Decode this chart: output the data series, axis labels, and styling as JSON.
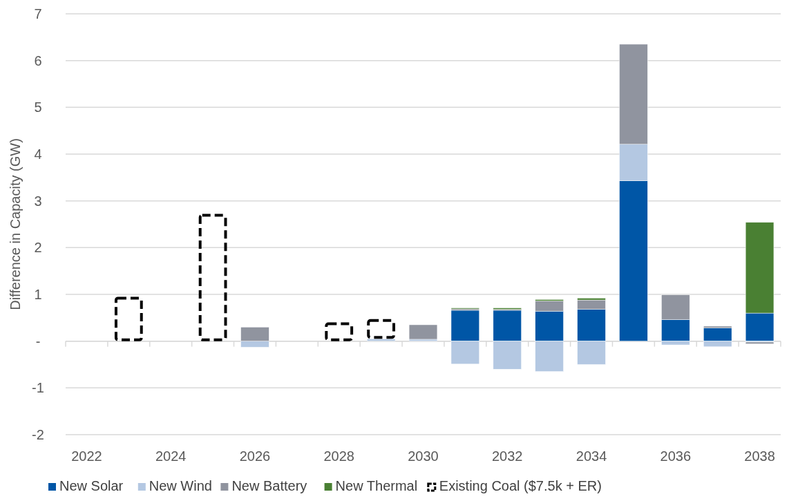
{
  "chart_data": {
    "type": "bar",
    "stacked": true,
    "ylabel": "Difference in Capacity (GW)",
    "categories": [
      "2022",
      null,
      "2024",
      null,
      "2026",
      null,
      "2028",
      null,
      "2030",
      null,
      "2032",
      null,
      "2034",
      null,
      "2036",
      null,
      "2038"
    ],
    "series": [
      {
        "name": "New Solar",
        "color": "#0056a6",
        "values": [
          0,
          0,
          0,
          0,
          0,
          0,
          0,
          0,
          0,
          0.66,
          0.66,
          0.64,
          0.68,
          3.43,
          0.46,
          0.28,
          0.6
        ]
      },
      {
        "name": "New Wind",
        "color": "#b4c8e2",
        "values": [
          0,
          0,
          0,
          0,
          -0.13,
          null,
          0,
          0.05,
          0.04,
          -0.49,
          -0.6,
          -0.65,
          -0.5,
          0.78,
          -0.08,
          -0.12,
          -0.02
        ]
      },
      {
        "name": "New Battery",
        "color": "#90949f",
        "values": [
          0,
          0,
          0,
          0,
          0.3,
          0,
          0,
          0,
          0.31,
          0.03,
          0.02,
          0.22,
          0.2,
          2.14,
          0.53,
          0.04,
          -0.04
        ]
      },
      {
        "name": "New Thermal",
        "color": "#4a8033",
        "values": [
          0,
          0,
          0,
          0,
          0,
          0,
          0,
          0,
          0,
          0.02,
          0.03,
          0.03,
          0.04,
          0,
          null,
          null,
          1.94
        ]
      },
      {
        "name": "Existing Coal ($7.5k + ER)",
        "color": "#000000",
        "line_style": "dashed",
        "values": [
          0,
          0.95,
          0,
          2.72,
          0,
          0,
          0.4,
          0.42,
          0,
          0,
          0,
          0,
          0,
          0,
          0,
          0,
          0
        ]
      }
    ],
    "ylim": [
      -2,
      7
    ],
    "yticks": [
      -2,
      -1,
      {
        "value": 0,
        "label": "-"
      },
      1,
      2,
      3,
      4,
      5,
      6,
      7
    ],
    "grid": "y",
    "legend": "bottom"
  }
}
